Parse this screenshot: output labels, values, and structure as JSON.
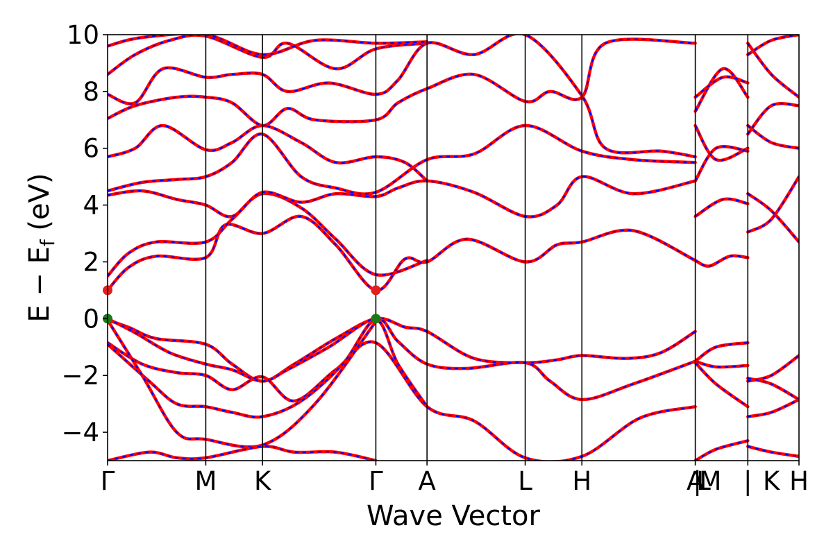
{
  "chart_data": {
    "type": "line",
    "xlabel": "Wave Vector",
    "ylabel": "E − E",
    "ylabel_subscript": "f",
    "ylabel_unit": "(eV)",
    "ylim": [
      -5,
      10
    ],
    "yticks": [
      -4,
      -2,
      0,
      2,
      4,
      6,
      8,
      10
    ],
    "ytick_labels": [
      "−4",
      "−2",
      "0",
      "2",
      "4",
      "6",
      "8",
      "10"
    ],
    "xlim": [
      0,
      1
    ],
    "kpoints": [
      {
        "x": 0.0,
        "label": "Γ"
      },
      {
        "x": 0.142,
        "label": "M"
      },
      {
        "x": 0.224,
        "label": "K"
      },
      {
        "x": 0.388,
        "label": "Γ"
      },
      {
        "x": 0.462,
        "label": "A"
      },
      {
        "x": 0.604,
        "label": "L"
      },
      {
        "x": 0.686,
        "label": "H"
      },
      {
        "x": 0.85,
        "label": "A"
      },
      {
        "x": 0.926,
        "label": "|"
      },
      {
        "x": 1.0,
        "label": "H"
      }
    ],
    "extra_xlabels": [
      {
        "x": 0.853,
        "label": "|"
      },
      {
        "x": 0.862,
        "label": "L"
      },
      {
        "x": 0.872,
        "label": "M"
      },
      {
        "x": 0.96,
        "label": "K"
      }
    ],
    "colors": {
      "primary": "#ff0000",
      "secondary": "#0000ff",
      "cbm": "#e0201f",
      "vbm": "#1a7a1a"
    },
    "band_edges": [
      {
        "kind": "CBM",
        "x": 0.0,
        "y": 1.0
      },
      {
        "kind": "CBM",
        "x": 0.388,
        "y": 1.0
      },
      {
        "kind": "VBM",
        "x": 0.0,
        "y": 0.0
      },
      {
        "kind": "VBM",
        "x": 0.388,
        "y": 0.0
      }
    ],
    "series": [
      {
        "points": [
          [
            0,
            -0.05
          ],
          [
            0.03,
            -0.3
          ],
          [
            0.07,
            -0.7
          ],
          [
            0.142,
            -0.9
          ],
          [
            0.18,
            -1.6
          ],
          [
            0.224,
            -2.2
          ],
          [
            0.27,
            -1.6
          ],
          [
            0.33,
            -0.7
          ],
          [
            0.388,
            0.0
          ],
          [
            0.43,
            -0.3
          ],
          [
            0.462,
            -0.45
          ],
          [
            0.53,
            -1.4
          ],
          [
            0.604,
            -1.55
          ],
          [
            0.65,
            -1.45
          ],
          [
            0.686,
            -1.3
          ],
          [
            0.75,
            -1.4
          ],
          [
            0.8,
            -1.2
          ],
          [
            0.85,
            -0.45
          ]
        ]
      },
      {
        "points": [
          [
            0,
            0.0
          ],
          [
            0.04,
            -0.5
          ],
          [
            0.09,
            -1.2
          ],
          [
            0.142,
            -1.6
          ],
          [
            0.18,
            -1.8
          ],
          [
            0.224,
            -2.2
          ],
          [
            0.26,
            -1.8
          ],
          [
            0.32,
            -1.0
          ],
          [
            0.388,
            0.0
          ],
          [
            0.42,
            -0.8
          ],
          [
            0.462,
            -1.6
          ],
          [
            0.52,
            -1.75
          ],
          [
            0.604,
            -1.55
          ],
          [
            0.64,
            -2.2
          ],
          [
            0.686,
            -2.85
          ],
          [
            0.76,
            -2.3
          ],
          [
            0.85,
            -1.5
          ]
        ]
      },
      {
        "points": [
          [
            0,
            -0.85
          ],
          [
            0.05,
            -1.6
          ],
          [
            0.1,
            -1.9
          ],
          [
            0.142,
            -2.0
          ],
          [
            0.18,
            -2.5
          ],
          [
            0.224,
            -2.05
          ],
          [
            0.27,
            -2.9
          ],
          [
            0.33,
            -1.8
          ],
          [
            0.388,
            -0.85
          ],
          [
            0.462,
            -3.1
          ],
          [
            0.53,
            -3.6
          ],
          [
            0.604,
            -4.9
          ],
          [
            0.686,
            -4.85
          ],
          [
            0.77,
            -3.5
          ],
          [
            0.85,
            -3.1
          ]
        ]
      },
      {
        "points": [
          [
            0,
            -0.9
          ],
          [
            0.06,
            -2.2
          ],
          [
            0.1,
            -3.0
          ],
          [
            0.142,
            -3.1
          ],
          [
            0.18,
            -3.3
          ],
          [
            0.224,
            -3.45
          ],
          [
            0.28,
            -2.9
          ],
          [
            0.34,
            -1.6
          ],
          [
            0.388,
            -0.05
          ],
          [
            0.42,
            -1.6
          ],
          [
            0.462,
            -3.1
          ]
        ]
      },
      {
        "points": [
          [
            0,
            -0.05
          ],
          [
            0.05,
            -2.0
          ],
          [
            0.1,
            -4.0
          ],
          [
            0.142,
            -4.25
          ],
          [
            0.224,
            -4.45
          ],
          [
            0.3,
            -3.0
          ],
          [
            0.388,
            -0.1
          ]
        ]
      },
      {
        "points": [
          [
            0,
            -5.0
          ],
          [
            0.06,
            -4.7
          ],
          [
            0.1,
            -4.9
          ],
          [
            0.142,
            -4.9
          ],
          [
            0.224,
            -4.5
          ],
          [
            0.27,
            -4.7
          ],
          [
            0.33,
            -4.7
          ],
          [
            0.388,
            -5.0
          ]
        ]
      },
      {
        "points": [
          [
            0,
            1.0
          ],
          [
            0.03,
            1.8
          ],
          [
            0.07,
            2.2
          ],
          [
            0.142,
            2.15
          ],
          [
            0.17,
            3.3
          ],
          [
            0.224,
            3.0
          ],
          [
            0.28,
            3.6
          ],
          [
            0.33,
            2.6
          ],
          [
            0.388,
            1.0
          ],
          [
            0.43,
            2.1
          ],
          [
            0.462,
            2.0
          ],
          [
            0.52,
            2.8
          ],
          [
            0.604,
            2.0
          ],
          [
            0.65,
            2.6
          ],
          [
            0.686,
            2.7
          ],
          [
            0.76,
            3.1
          ],
          [
            0.85,
            2.05
          ]
        ]
      },
      {
        "points": [
          [
            0,
            1.5
          ],
          [
            0.03,
            2.3
          ],
          [
            0.07,
            2.7
          ],
          [
            0.142,
            2.7
          ],
          [
            0.18,
            3.5
          ],
          [
            0.224,
            4.4
          ],
          [
            0.28,
            3.9
          ],
          [
            0.33,
            2.8
          ],
          [
            0.388,
            1.55
          ],
          [
            0.462,
            2.05
          ]
        ]
      },
      {
        "points": [
          [
            0,
            4.35
          ],
          [
            0.05,
            4.5
          ],
          [
            0.1,
            4.2
          ],
          [
            0.142,
            4.0
          ],
          [
            0.18,
            3.6
          ],
          [
            0.224,
            4.45
          ],
          [
            0.28,
            4.1
          ],
          [
            0.33,
            4.4
          ],
          [
            0.388,
            4.3
          ],
          [
            0.42,
            4.6
          ],
          [
            0.462,
            4.85
          ],
          [
            0.53,
            4.45
          ],
          [
            0.604,
            3.6
          ],
          [
            0.65,
            4.0
          ],
          [
            0.686,
            5.0
          ],
          [
            0.76,
            4.4
          ],
          [
            0.85,
            4.85
          ]
        ]
      },
      {
        "points": [
          [
            0,
            4.5
          ],
          [
            0.05,
            4.8
          ],
          [
            0.1,
            4.9
          ],
          [
            0.142,
            5.0
          ],
          [
            0.18,
            5.5
          ],
          [
            0.224,
            6.5
          ],
          [
            0.28,
            5.0
          ],
          [
            0.33,
            4.6
          ],
          [
            0.388,
            4.45
          ],
          [
            0.462,
            5.6
          ],
          [
            0.53,
            5.8
          ],
          [
            0.604,
            6.8
          ],
          [
            0.686,
            5.9
          ],
          [
            0.76,
            5.6
          ],
          [
            0.85,
            5.5
          ]
        ]
      },
      {
        "points": [
          [
            0,
            5.7
          ],
          [
            0.04,
            6.0
          ],
          [
            0.08,
            6.8
          ],
          [
            0.142,
            5.95
          ],
          [
            0.18,
            6.2
          ],
          [
            0.224,
            6.8
          ],
          [
            0.28,
            6.2
          ],
          [
            0.33,
            5.5
          ],
          [
            0.388,
            5.7
          ],
          [
            0.43,
            5.5
          ],
          [
            0.462,
            4.85
          ]
        ]
      },
      {
        "points": [
          [
            0,
            7.05
          ],
          [
            0.04,
            7.5
          ],
          [
            0.1,
            7.8
          ],
          [
            0.142,
            7.8
          ],
          [
            0.18,
            7.6
          ],
          [
            0.224,
            6.8
          ],
          [
            0.26,
            7.4
          ],
          [
            0.3,
            7.0
          ],
          [
            0.388,
            7.0
          ],
          [
            0.42,
            7.6
          ],
          [
            0.462,
            8.1
          ],
          [
            0.53,
            8.6
          ],
          [
            0.604,
            7.65
          ],
          [
            0.64,
            8.0
          ],
          [
            0.686,
            7.8
          ],
          [
            0.72,
            9.7
          ],
          [
            0.85,
            9.7
          ]
        ]
      },
      {
        "points": [
          [
            0,
            7.9
          ],
          [
            0.04,
            7.6
          ],
          [
            0.08,
            8.8
          ],
          [
            0.142,
            8.5
          ],
          [
            0.18,
            8.6
          ],
          [
            0.224,
            8.6
          ],
          [
            0.26,
            8.0
          ],
          [
            0.32,
            8.3
          ],
          [
            0.388,
            7.9
          ],
          [
            0.42,
            8.4
          ],
          [
            0.462,
            9.7
          ],
          [
            0.53,
            9.3
          ],
          [
            0.604,
            10.0
          ],
          [
            0.686,
            7.85
          ],
          [
            0.72,
            6.0
          ],
          [
            0.8,
            5.9
          ],
          [
            0.85,
            5.7
          ]
        ]
      },
      {
        "points": [
          [
            0,
            8.6
          ],
          [
            0.04,
            9.3
          ],
          [
            0.09,
            9.8
          ],
          [
            0.142,
            9.95
          ],
          [
            0.224,
            9.2
          ],
          [
            0.26,
            9.7
          ],
          [
            0.33,
            8.8
          ],
          [
            0.388,
            9.5
          ],
          [
            0.462,
            9.7
          ]
        ]
      },
      {
        "points": [
          [
            0,
            9.6
          ],
          [
            0.05,
            9.9
          ],
          [
            0.142,
            10.0
          ],
          [
            0.224,
            9.3
          ],
          [
            0.3,
            9.8
          ],
          [
            0.388,
            9.7
          ],
          [
            0.462,
            9.75
          ]
        ]
      },
      {
        "points": [
          [
            0.85,
            -1.5
          ],
          [
            0.88,
            -1.0
          ],
          [
            0.926,
            -0.85
          ]
        ]
      },
      {
        "points": [
          [
            0.85,
            -1.5
          ],
          [
            0.88,
            -1.7
          ],
          [
            0.926,
            -1.65
          ]
        ]
      },
      {
        "points": [
          [
            0.85,
            -1.55
          ],
          [
            0.88,
            -2.3
          ],
          [
            0.926,
            -3.1
          ]
        ]
      },
      {
        "points": [
          [
            0.85,
            -5.0
          ],
          [
            0.88,
            -4.6
          ],
          [
            0.926,
            -4.3
          ]
        ]
      },
      {
        "points": [
          [
            0.85,
            2.05
          ],
          [
            0.87,
            1.85
          ],
          [
            0.9,
            2.2
          ],
          [
            0.926,
            2.15
          ]
        ]
      },
      {
        "points": [
          [
            0.85,
            3.6
          ],
          [
            0.89,
            4.2
          ],
          [
            0.926,
            4.05
          ]
        ]
      },
      {
        "points": [
          [
            0.85,
            4.85
          ],
          [
            0.88,
            6.0
          ],
          [
            0.926,
            5.9
          ]
        ]
      },
      {
        "points": [
          [
            0.85,
            6.8
          ],
          [
            0.88,
            5.6
          ],
          [
            0.926,
            6.0
          ]
        ]
      },
      {
        "points": [
          [
            0.85,
            7.3
          ],
          [
            0.89,
            8.8
          ],
          [
            0.926,
            7.8
          ]
        ]
      },
      {
        "points": [
          [
            0.85,
            7.8
          ],
          [
            0.89,
            8.5
          ],
          [
            0.926,
            8.3
          ]
        ]
      },
      {
        "points": [
          [
            0.926,
            -2.2
          ],
          [
            0.96,
            -2.0
          ],
          [
            1.0,
            -1.3
          ]
        ]
      },
      {
        "points": [
          [
            0.926,
            -2.1
          ],
          [
            0.96,
            -2.3
          ],
          [
            1.0,
            -2.85
          ]
        ]
      },
      {
        "points": [
          [
            0.926,
            -3.45
          ],
          [
            0.96,
            -3.3
          ],
          [
            1.0,
            -2.85
          ]
        ]
      },
      {
        "points": [
          [
            0.926,
            -4.5
          ],
          [
            0.96,
            -4.7
          ],
          [
            1.0,
            -4.85
          ]
        ]
      },
      {
        "points": [
          [
            0.926,
            3.05
          ],
          [
            0.96,
            3.5
          ],
          [
            1.0,
            5.0
          ]
        ]
      },
      {
        "points": [
          [
            0.926,
            4.4
          ],
          [
            0.96,
            3.8
          ],
          [
            1.0,
            2.7
          ]
        ]
      },
      {
        "points": [
          [
            0.926,
            6.8
          ],
          [
            0.96,
            6.2
          ],
          [
            1.0,
            6.0
          ]
        ]
      },
      {
        "points": [
          [
            0.926,
            6.5
          ],
          [
            0.96,
            7.5
          ],
          [
            1.0,
            7.5
          ]
        ]
      },
      {
        "points": [
          [
            0.926,
            9.7
          ],
          [
            0.96,
            8.6
          ],
          [
            1.0,
            7.8
          ]
        ]
      },
      {
        "points": [
          [
            0.926,
            9.3
          ],
          [
            0.96,
            9.8
          ],
          [
            1.0,
            10.0
          ]
        ]
      }
    ]
  }
}
